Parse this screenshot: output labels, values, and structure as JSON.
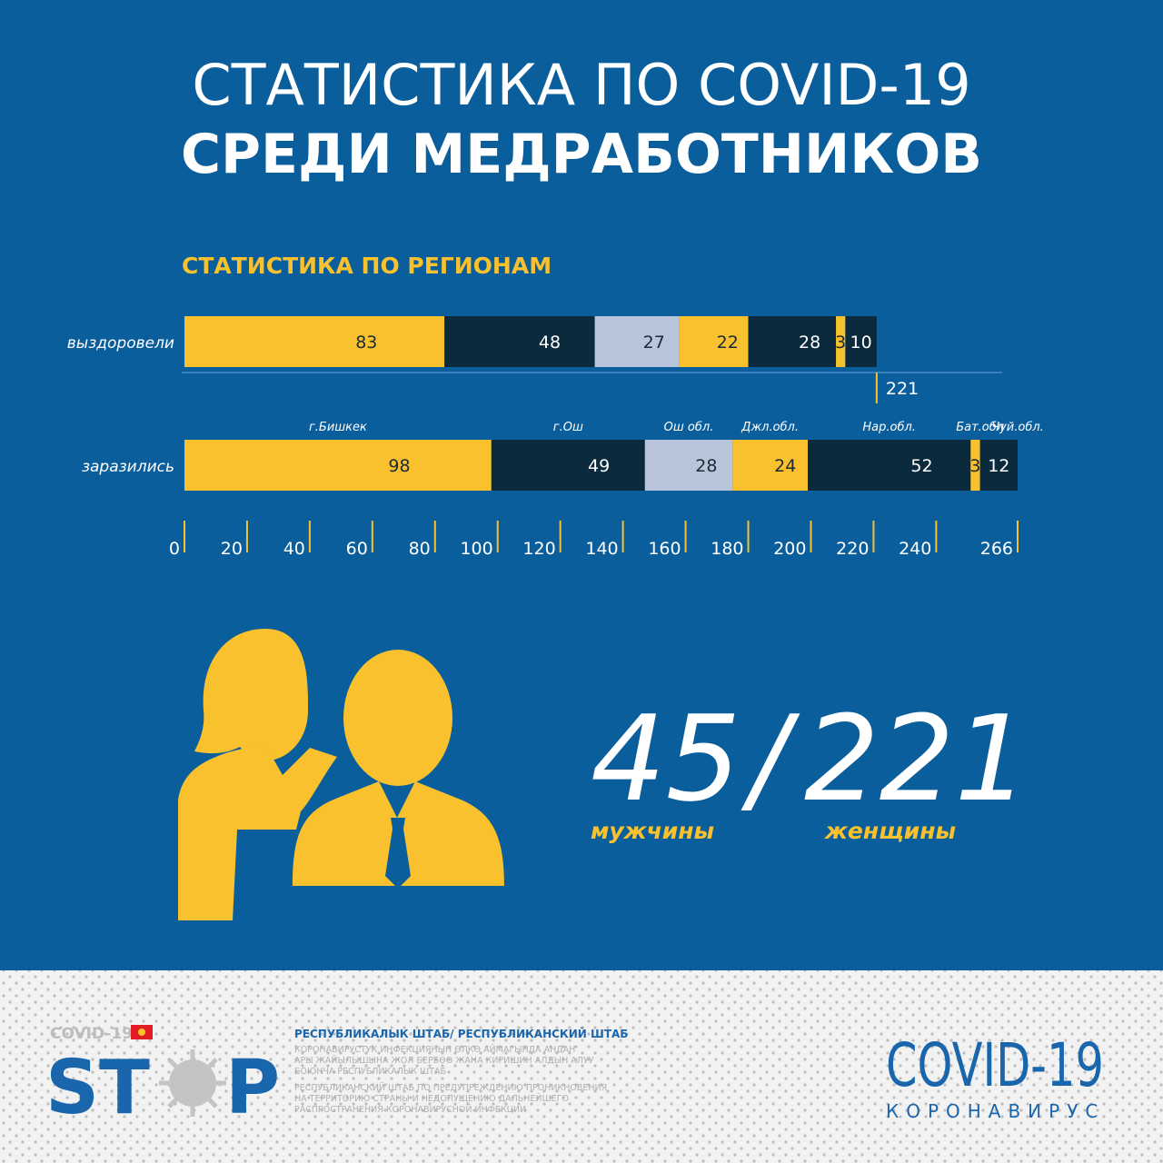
{
  "title": {
    "line1": "СТАТИСТИКА ПО COVID-19",
    "line2": "СРЕДИ МЕДРАБОТНИКОВ"
  },
  "chart_data": {
    "type": "bar",
    "orientation": "horizontal",
    "stacked": true,
    "title": "СТАТИСТИКА ПО РЕГИОНАМ",
    "categories": [
      "выздоровели",
      "заразились"
    ],
    "series": [
      {
        "name": "г.Бишкек",
        "color": "#f8c12d",
        "values": [
          83,
          98
        ]
      },
      {
        "name": "г.Ош",
        "color": "#0c2a3d",
        "values": [
          48,
          49
        ]
      },
      {
        "name": "Ош обл.",
        "color": "#b9c5db",
        "values": [
          27,
          28
        ]
      },
      {
        "name": "Джл.обл.",
        "color": "#f8c12d",
        "values": [
          22,
          24
        ]
      },
      {
        "name": "Нар.обл.",
        "color": "#0c2a3d",
        "values": [
          28,
          52
        ]
      },
      {
        "name": "Бат.обл",
        "color": "#f8c12d",
        "values": [
          3,
          3
        ]
      },
      {
        "name": "Чуй.обл.",
        "color": "#0c2a3d",
        "values": [
          10,
          12
        ]
      }
    ],
    "totals": [
      221,
      null
    ],
    "xlim": [
      0,
      266
    ],
    "xticks": [
      0,
      20,
      40,
      60,
      80,
      100,
      120,
      140,
      160,
      180,
      200,
      220,
      240,
      266
    ]
  },
  "stats": {
    "men": "45",
    "separator": "/",
    "women": "221",
    "men_label": "мужчины",
    "women_label": "женщины"
  },
  "footer": {
    "logo_small": "COVID-19",
    "logo_left": "ST",
    "logo_right": "P",
    "headline": "РЕСПУБЛИКАЛЫК ШТАБ/ РЕСПУБЛИКАНСКИЙ ШТАБ",
    "text_ky": [
      "КОРОНАВИРУСТУК ИНФЕКЦИЯНЫН ӨЛКӨ АЙМАГЫНДА АНДАН",
      "АРЫ ЖАЙЫЛЫШЫНА ЖОЛ БЕРБӨӨ ЖАНА КИРИШИН АЛДЫН АЛУУ",
      "БОЮНЧА РЕСПУБЛИКАЛЫК ШТАБ"
    ],
    "text_ru": [
      "РЕСПУБЛИКАНСКИЙ ШТАБ ПО ПРЕДУПРЕЖДЕНИЮ ПРОНИКНОВЕНИЯ",
      "НА ТЕРРИТОРИЮ СТРАНЫ И НЕДОПУЩЕНИЮ ДАЛЬНЕЙШЕГО",
      "РАСПРОСТРАНЕНИЯ КОРОНАВИРУСНОЙ ИНФЕКЦИИ"
    ],
    "brand": "COVID-19",
    "brand_sub": "КОРОНАВИРУС"
  }
}
